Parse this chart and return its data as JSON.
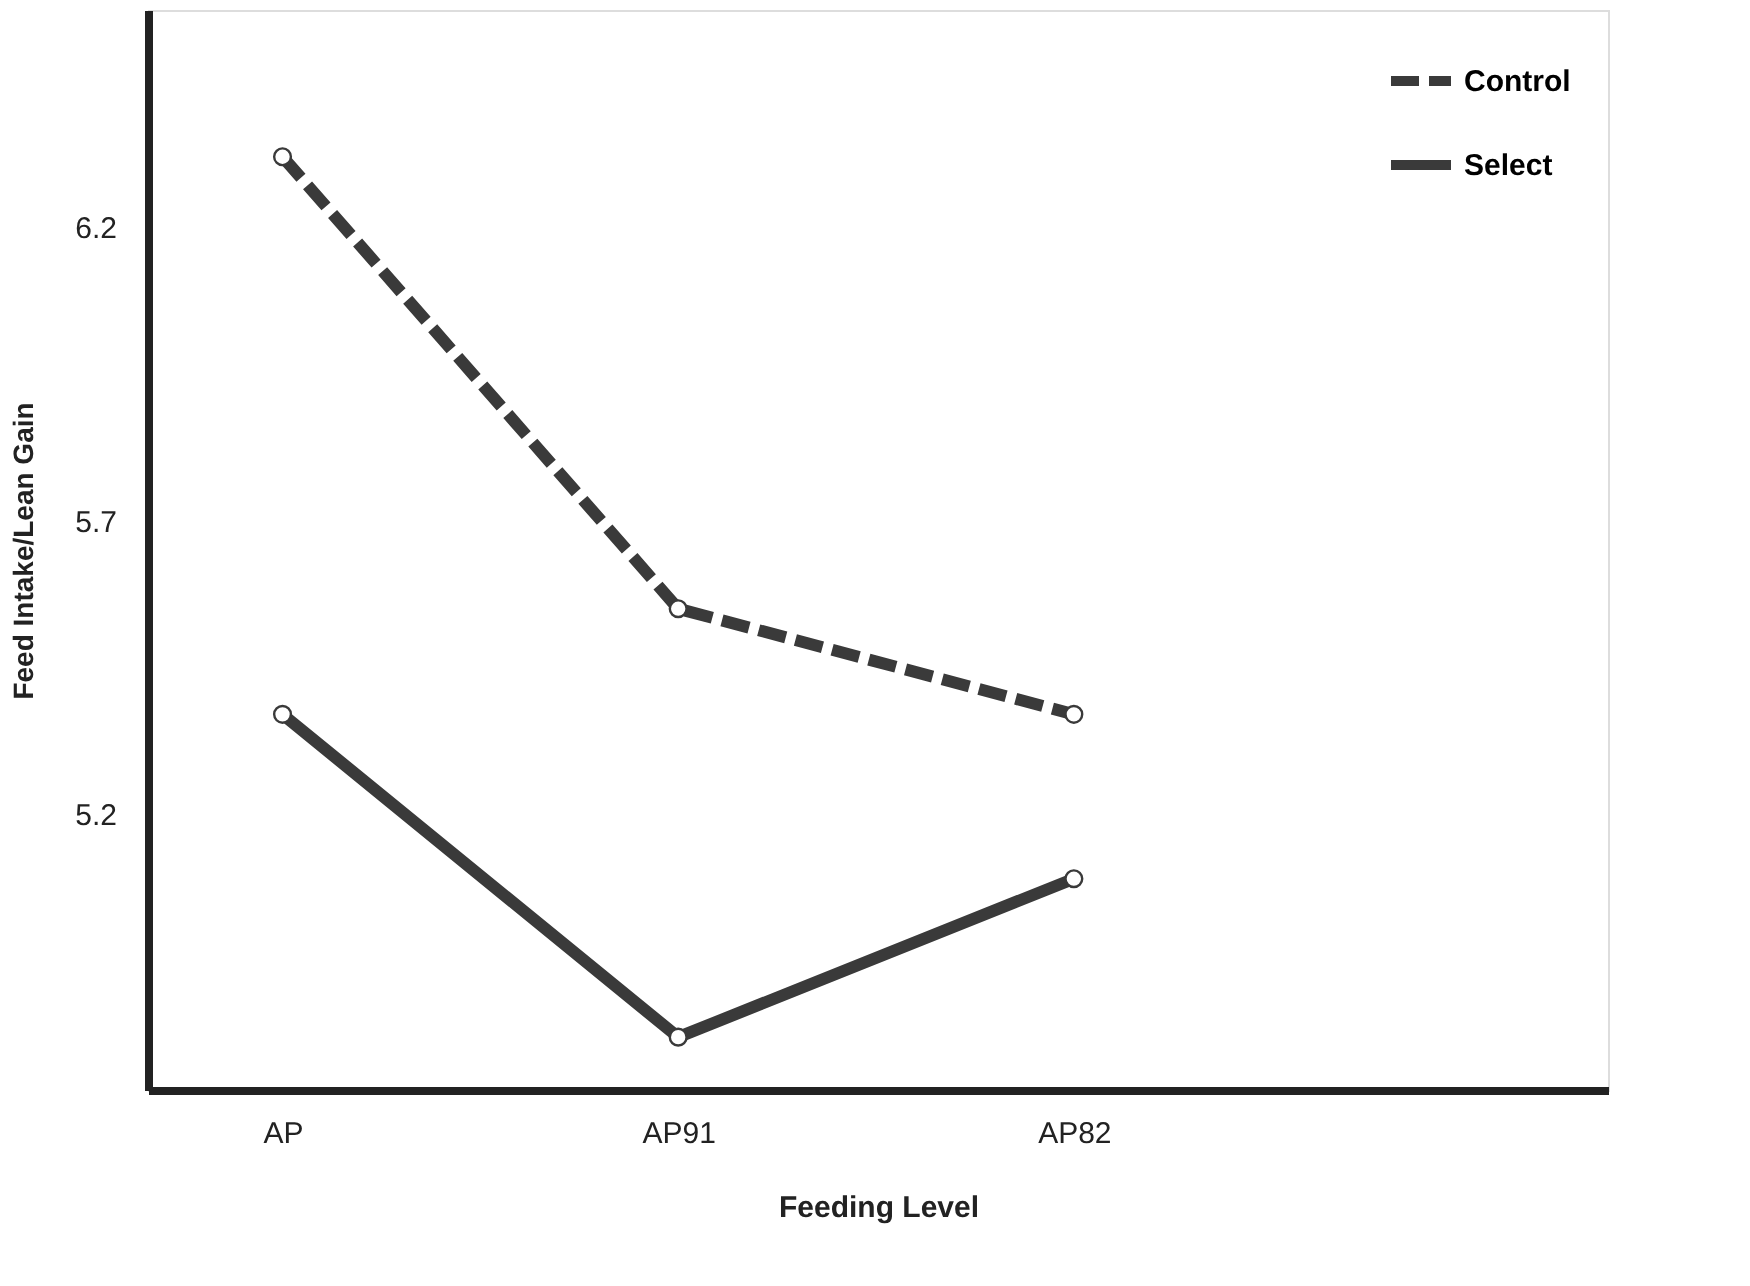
{
  "chart_data": {
    "type": "line",
    "xlabel": "Feeding Level",
    "ylabel": "Feed Intake/Lean Gain",
    "categories": [
      "AP",
      "AP91",
      "AP82"
    ],
    "series": [
      {
        "name": "Control",
        "color": "#3a3a3a",
        "line_style": "dashed",
        "values": [
          6.32,
          5.55,
          5.37
        ]
      },
      {
        "name": "Select",
        "color": "#3a3a3a",
        "line_style": "solid",
        "values": [
          5.37,
          4.82,
          5.09
        ]
      }
    ],
    "ylim": [
      4.73,
      6.57
    ],
    "yticks": [
      5.2,
      5.7,
      6.2
    ],
    "grid": false,
    "legend": "top right",
    "marker": "circle"
  }
}
